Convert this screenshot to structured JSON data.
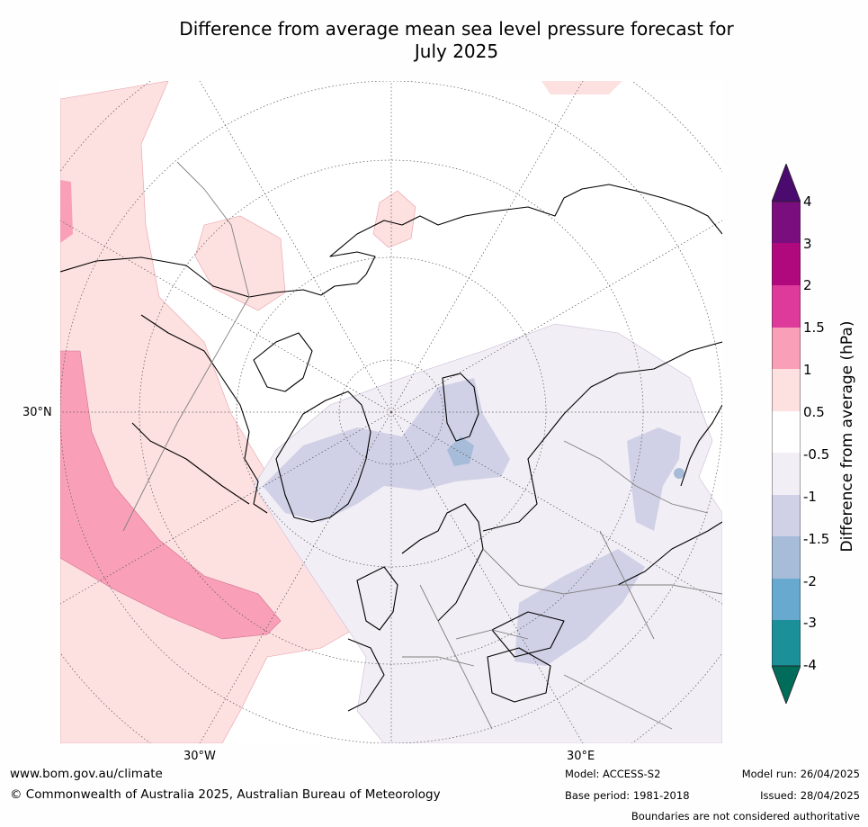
{
  "title": {
    "line1": "Difference from average mean sea level pressure forecast for",
    "line2": "July 2025"
  },
  "map": {
    "latitude_label": "30°N",
    "longitude_labels": [
      "30°W",
      "30°E"
    ],
    "colors": {
      "land_outline": "#000000",
      "borders": "#808080",
      "graticule": "#555555"
    }
  },
  "colorbar": {
    "label": "Difference from average (hPa)",
    "ticks": [
      "4",
      "3",
      "2",
      "1.5",
      "1",
      "0.5",
      "-0.5",
      "-1",
      "-1.5",
      "-2",
      "-3",
      "-4"
    ],
    "colors": {
      "above_4": "#4b0a6e",
      "3_to_4": "#7b0e7e",
      "2_to_3": "#b0097d",
      "1.5_to_2": "#dd3a9b",
      "1_to_1.5": "#f9a0b8",
      "0.5_to_1": "#fde0e0",
      "-0.5_to_0.5": "#ffffff",
      "-1_to_-0.5": "#f2eef5",
      "-1.5_to_-1": "#d0d1e6",
      "-2_to_-1.5": "#a6bcd9",
      "-3_to_-2": "#67a9cf",
      "-4_to_-3": "#1c9099",
      "below_-4": "#016c59"
    }
  },
  "footer": {
    "website": "www.bom.gov.au/climate",
    "copyright": "© Commonwealth of Australia 2025, Australian Bureau of Meteorology",
    "model": "Model: ACCESS-S2",
    "base_period": "Base period: 1981-2018",
    "model_run": "Model run: 26/04/2025",
    "issued": "Issued: 28/04/2025",
    "boundaries_note": "Boundaries are not considered authoritative"
  }
}
